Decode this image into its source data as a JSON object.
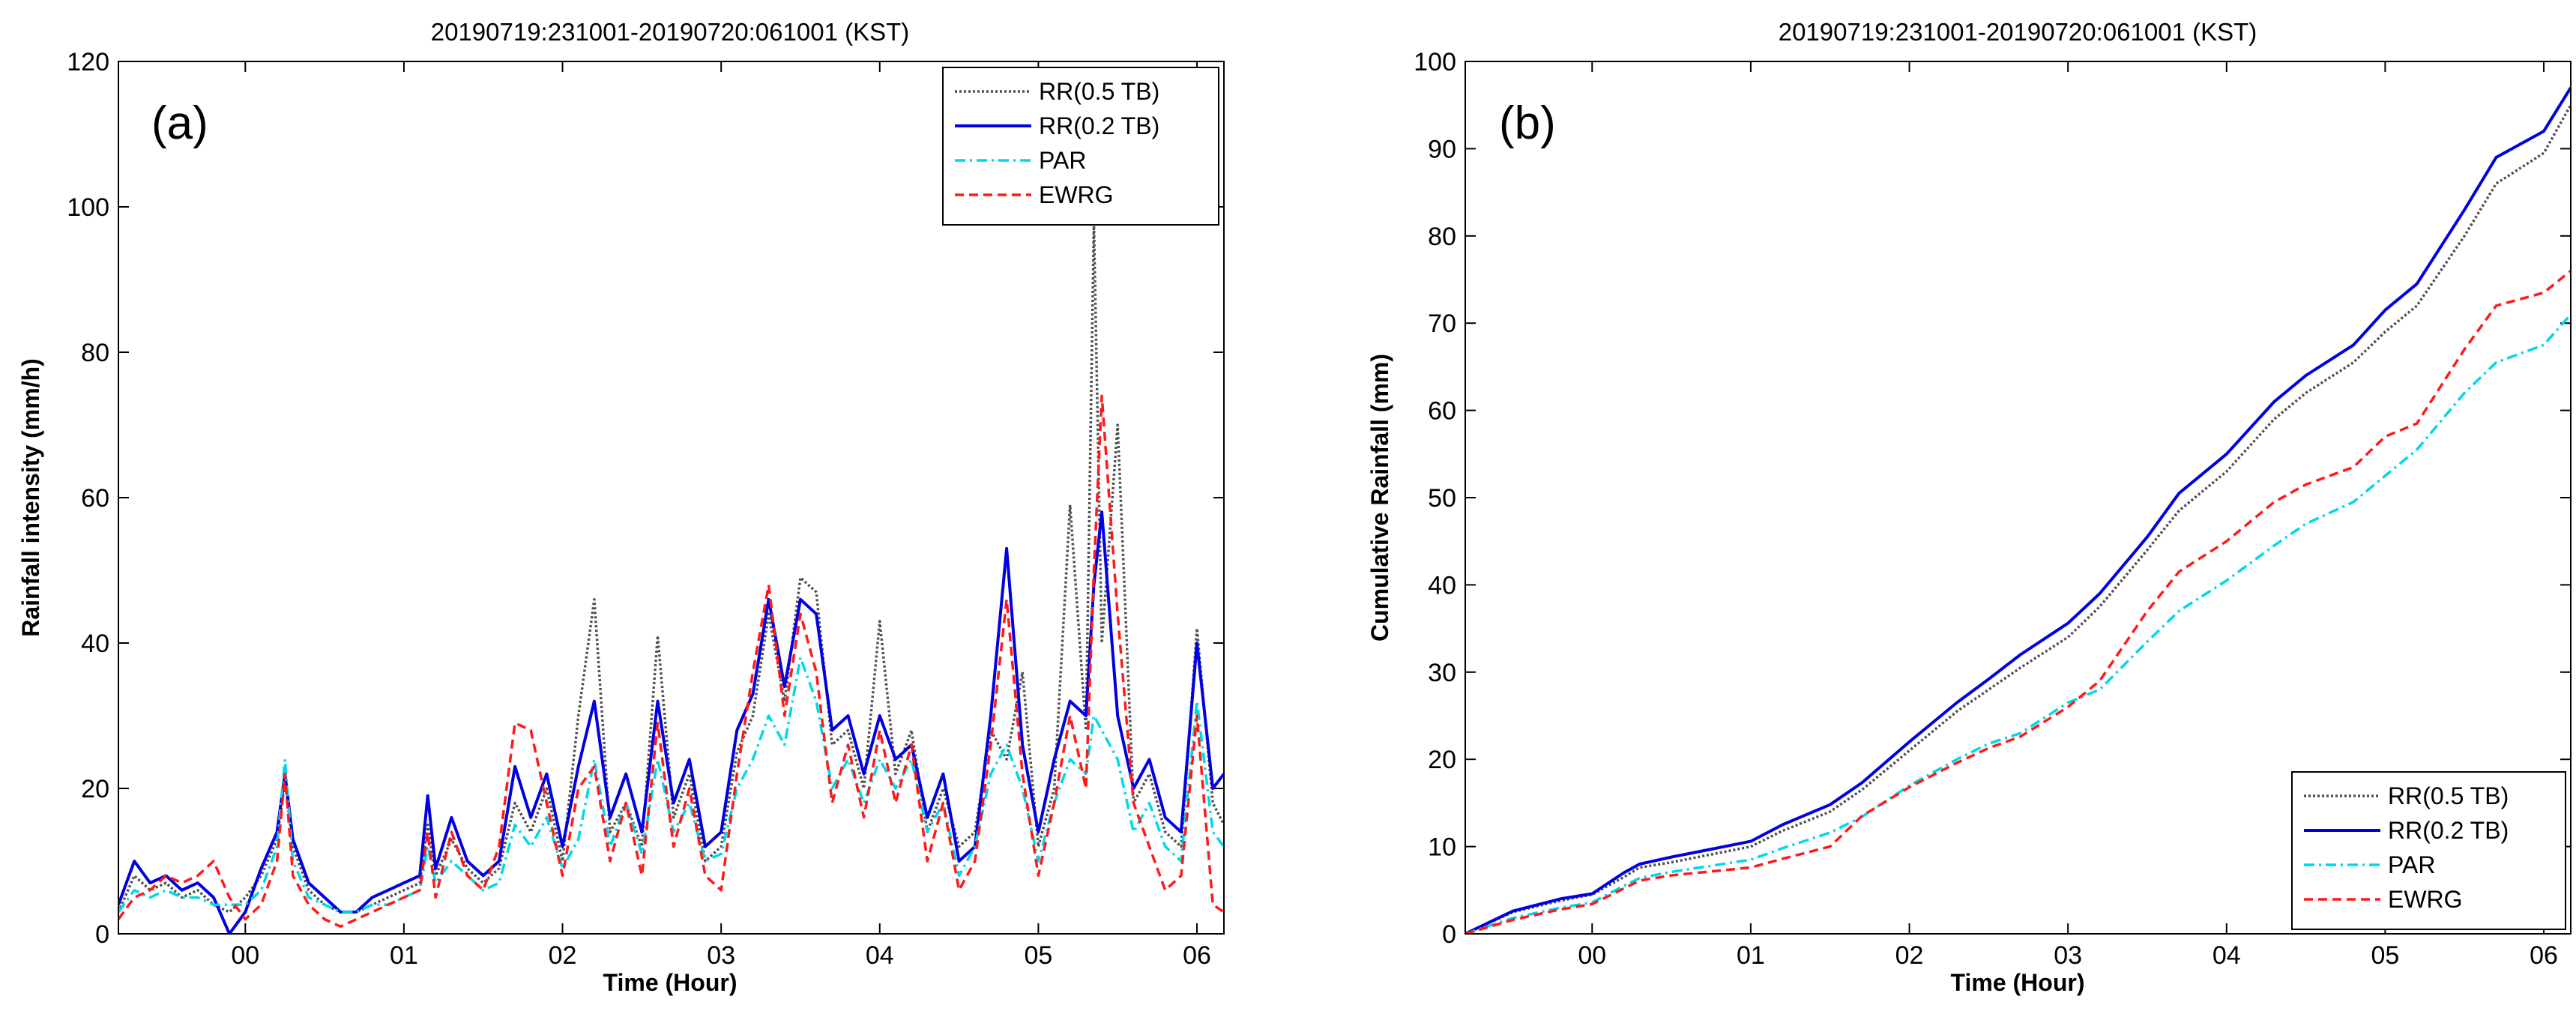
{
  "chart_data": [
    {
      "type": "line",
      "panel_label": "(a)",
      "title": "20190719:231001-20190720:061001 (KST)",
      "xlabel": "Time (Hour)",
      "ylabel": "Rainfall intensity (mm/h)",
      "xlim": [
        -0.8,
        6.17
      ],
      "ylim": [
        0,
        120
      ],
      "xticks": [
        0,
        1,
        2,
        3,
        4,
        5,
        6
      ],
      "xtick_labels": [
        "00",
        "01",
        "02",
        "03",
        "04",
        "05",
        "06"
      ],
      "yticks": [
        0,
        20,
        40,
        60,
        80,
        100,
        120
      ],
      "ytick_labels": [
        "0",
        "20",
        "40",
        "60",
        "80",
        "100",
        "120"
      ],
      "legend_position": "top-right",
      "x": [
        -0.8,
        -0.7,
        -0.6,
        -0.5,
        -0.4,
        -0.3,
        -0.2,
        -0.1,
        0.0,
        0.1,
        0.2,
        0.25,
        0.3,
        0.4,
        0.5,
        0.6,
        0.7,
        0.8,
        0.9,
        1.0,
        1.1,
        1.15,
        1.2,
        1.3,
        1.4,
        1.5,
        1.6,
        1.7,
        1.8,
        1.9,
        2.0,
        2.1,
        2.2,
        2.3,
        2.4,
        2.5,
        2.6,
        2.7,
        2.8,
        2.9,
        3.0,
        3.1,
        3.2,
        3.3,
        3.4,
        3.5,
        3.6,
        3.7,
        3.8,
        3.9,
        4.0,
        4.1,
        4.2,
        4.3,
        4.4,
        4.5,
        4.6,
        4.7,
        4.8,
        4.9,
        5.0,
        5.1,
        5.2,
        5.3,
        5.35,
        5.4,
        5.5,
        5.6,
        5.7,
        5.8,
        5.9,
        6.0,
        6.1,
        6.17
      ],
      "series": [
        {
          "name": "RR(0.5 TB)",
          "color": "#505050",
          "dash": "3,3",
          "values": [
            3,
            8,
            6,
            7,
            5,
            6,
            4,
            3,
            5,
            8,
            13,
            21,
            12,
            6,
            4,
            3,
            3,
            4,
            5,
            6,
            7,
            15,
            8,
            13,
            9,
            7,
            9,
            18,
            14,
            20,
            10,
            30,
            46,
            14,
            18,
            12,
            41,
            16,
            22,
            10,
            12,
            25,
            30,
            44,
            32,
            49,
            47,
            26,
            28,
            20,
            43,
            22,
            28,
            14,
            20,
            12,
            14,
            28,
            24,
            36,
            12,
            20,
            59,
            28,
            98,
            40,
            70,
            18,
            22,
            14,
            12,
            42,
            18,
            15
          ]
        },
        {
          "name": "RR(0.2 TB)",
          "color": "#0000e0",
          "dash": "",
          "values": [
            4,
            10,
            7,
            8,
            6,
            7,
            5,
            0,
            3,
            9,
            14,
            22,
            13,
            7,
            5,
            3,
            3,
            5,
            6,
            7,
            8,
            19,
            9,
            16,
            10,
            8,
            10,
            23,
            16,
            22,
            12,
            23,
            32,
            16,
            22,
            14,
            32,
            18,
            24,
            12,
            14,
            28,
            33,
            46,
            34,
            46,
            44,
            28,
            30,
            22,
            30,
            24,
            26,
            16,
            22,
            10,
            12,
            30,
            53,
            26,
            14,
            24,
            32,
            30,
            48,
            58,
            30,
            20,
            24,
            16,
            14,
            40,
            20,
            22
          ]
        },
        {
          "name": "PAR",
          "color": "#00d8e8",
          "dash": "14,6,3,6",
          "values": [
            3,
            6,
            5,
            6,
            5,
            5,
            4,
            4,
            4,
            6,
            12,
            24,
            10,
            5,
            4,
            3,
            3,
            4,
            4,
            5,
            6,
            12,
            7,
            10,
            8,
            6,
            7,
            15,
            12,
            16,
            9,
            13,
            24,
            12,
            18,
            11,
            24,
            14,
            18,
            10,
            11,
            20,
            24,
            30,
            26,
            38,
            32,
            20,
            24,
            18,
            24,
            20,
            24,
            14,
            18,
            8,
            12,
            22,
            26,
            20,
            10,
            18,
            24,
            22,
            30,
            28,
            24,
            14,
            18,
            12,
            10,
            32,
            14,
            12
          ]
        },
        {
          "name": "EWRG",
          "color": "#ff1a1a",
          "dash": "12,7",
          "values": [
            2,
            5,
            6,
            8,
            7,
            8,
            10,
            5,
            2,
            4,
            10,
            22,
            8,
            4,
            2,
            1,
            2,
            3,
            4,
            5,
            6,
            14,
            5,
            14,
            8,
            6,
            12,
            29,
            28,
            18,
            8,
            20,
            23,
            10,
            18,
            8,
            29,
            12,
            20,
            8,
            6,
            22,
            36,
            48,
            30,
            44,
            36,
            18,
            26,
            16,
            28,
            18,
            26,
            10,
            18,
            6,
            10,
            26,
            46,
            22,
            8,
            18,
            30,
            20,
            50,
            74,
            44,
            18,
            12,
            6,
            8,
            30,
            4,
            3
          ]
        }
      ]
    },
    {
      "type": "line",
      "panel_label": "(b)",
      "title": "20190719:231001-20190720:061001 (KST)",
      "xlabel": "Time (Hour)",
      "ylabel": "Cumulative Rainfall (mm)",
      "xlim": [
        -0.8,
        6.17
      ],
      "ylim": [
        0,
        100
      ],
      "xticks": [
        0,
        1,
        2,
        3,
        4,
        5,
        6
      ],
      "xtick_labels": [
        "00",
        "01",
        "02",
        "03",
        "04",
        "05",
        "06"
      ],
      "yticks": [
        0,
        10,
        20,
        30,
        40,
        50,
        60,
        70,
        80,
        90,
        100
      ],
      "ytick_labels": [
        "0",
        "10",
        "20",
        "30",
        "40",
        "50",
        "60",
        "70",
        "80",
        "90",
        "100"
      ],
      "legend_position": "bottom-right",
      "x": [
        -0.8,
        -0.5,
        -0.2,
        0.0,
        0.2,
        0.3,
        0.5,
        1.0,
        1.2,
        1.5,
        1.7,
        2.0,
        2.3,
        2.5,
        2.7,
        3.0,
        3.2,
        3.5,
        3.7,
        4.0,
        4.3,
        4.5,
        4.8,
        5.0,
        5.2,
        5.5,
        5.7,
        6.0,
        6.17
      ],
      "series": [
        {
          "name": "RR(0.5 TB)",
          "color": "#505050",
          "dash": "3,3",
          "values": [
            0,
            2.5,
            3.8,
            4.5,
            6.5,
            7.6,
            8.2,
            10.0,
            11.8,
            14.0,
            16.5,
            21.0,
            25.5,
            28.0,
            30.5,
            34.0,
            37.5,
            44.0,
            48.5,
            53.0,
            59.0,
            62.0,
            65.5,
            69.0,
            72.0,
            80.0,
            86.0,
            89.5,
            95.0
          ]
        },
        {
          "name": "RR(0.2 TB)",
          "color": "#0000e0",
          "dash": "",
          "values": [
            0,
            2.6,
            4.0,
            4.6,
            7.0,
            8.0,
            8.8,
            10.6,
            12.5,
            14.8,
            17.3,
            22.0,
            26.5,
            29.2,
            32.0,
            35.6,
            39.0,
            45.5,
            50.5,
            55.0,
            61.0,
            64.0,
            67.5,
            71.5,
            74.5,
            83.0,
            89.0,
            92.0,
            97.0
          ]
        },
        {
          "name": "PAR",
          "color": "#00d8e8",
          "dash": "14,6,3,6",
          "values": [
            0,
            1.8,
            3.0,
            3.6,
            5.5,
            6.4,
            7.1,
            8.5,
            9.8,
            11.6,
            13.4,
            17.0,
            20.0,
            21.8,
            23.0,
            26.5,
            28.0,
            33.5,
            37.0,
            40.5,
            44.5,
            47.0,
            49.5,
            52.5,
            55.5,
            62.0,
            65.5,
            67.5,
            71.0
          ]
        },
        {
          "name": "EWRG",
          "color": "#ff1a1a",
          "dash": "12,7",
          "values": [
            0,
            1.6,
            2.8,
            3.4,
            5.2,
            6.1,
            6.7,
            7.6,
            8.6,
            10.0,
            13.5,
            16.8,
            19.6,
            21.3,
            22.6,
            26.0,
            29.0,
            37.0,
            41.5,
            45.0,
            49.5,
            51.5,
            53.5,
            57.0,
            58.5,
            67.0,
            72.0,
            73.5,
            76.0
          ]
        }
      ]
    }
  ]
}
